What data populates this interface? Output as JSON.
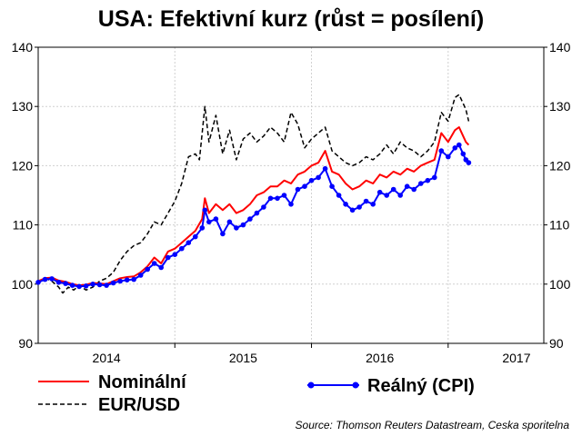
{
  "chart_data": {
    "type": "line",
    "title": "USA: Efektivní kurz (růst = posílení)",
    "source": "Source: Thomson Reuters Datastream, Ceska sporitelna",
    "ylim": [
      90,
      140
    ],
    "y_ticks": [
      "90",
      "100",
      "110",
      "120",
      "130",
      "140"
    ],
    "xlim": [
      2013.5,
      2017.2
    ],
    "x_ticks": [
      {
        "label": "2014",
        "x": 2014
      },
      {
        "label": "2015",
        "x": 2015
      },
      {
        "label": "2016",
        "x": 2016
      },
      {
        "label": "2017",
        "x": 2017
      }
    ],
    "grid": true,
    "legend_position": "bottom",
    "series": [
      {
        "name": "Nominální",
        "color": "#ff0000",
        "style": "solid",
        "points": [
          [
            2013.5,
            100.5
          ],
          [
            2013.55,
            101.0
          ],
          [
            2013.6,
            101.1
          ],
          [
            2013.65,
            100.6
          ],
          [
            2013.7,
            100.4
          ],
          [
            2013.75,
            100.0
          ],
          [
            2013.8,
            99.8
          ],
          [
            2013.85,
            99.9
          ],
          [
            2013.9,
            100.2
          ],
          [
            2013.95,
            100.1
          ],
          [
            2014.0,
            100.0
          ],
          [
            2014.05,
            100.5
          ],
          [
            2014.1,
            101.0
          ],
          [
            2014.15,
            101.2
          ],
          [
            2014.2,
            101.3
          ],
          [
            2014.25,
            102.0
          ],
          [
            2014.3,
            103.0
          ],
          [
            2014.35,
            104.5
          ],
          [
            2014.4,
            103.5
          ],
          [
            2014.45,
            105.5
          ],
          [
            2014.5,
            106.0
          ],
          [
            2014.55,
            107.0
          ],
          [
            2014.6,
            108.0
          ],
          [
            2014.65,
            109.0
          ],
          [
            2014.7,
            111.0
          ],
          [
            2014.72,
            114.5
          ],
          [
            2014.75,
            112.0
          ],
          [
            2014.8,
            113.5
          ],
          [
            2014.85,
            112.5
          ],
          [
            2014.9,
            113.5
          ],
          [
            2014.95,
            112.0
          ],
          [
            2015.0,
            112.5
          ],
          [
            2015.05,
            113.5
          ],
          [
            2015.1,
            115.0
          ],
          [
            2015.15,
            115.5
          ],
          [
            2015.2,
            116.5
          ],
          [
            2015.25,
            116.5
          ],
          [
            2015.3,
            117.5
          ],
          [
            2015.35,
            117.0
          ],
          [
            2015.4,
            118.5
          ],
          [
            2015.45,
            119.0
          ],
          [
            2015.5,
            120.0
          ],
          [
            2015.55,
            120.5
          ],
          [
            2015.6,
            122.5
          ],
          [
            2015.65,
            119.0
          ],
          [
            2015.7,
            118.5
          ],
          [
            2015.75,
            117.0
          ],
          [
            2015.8,
            116.0
          ],
          [
            2015.85,
            116.5
          ],
          [
            2015.9,
            117.5
          ],
          [
            2015.95,
            117.0
          ],
          [
            2016.0,
            118.5
          ],
          [
            2016.05,
            118.0
          ],
          [
            2016.1,
            119.0
          ],
          [
            2016.15,
            118.5
          ],
          [
            2016.2,
            119.5
          ],
          [
            2016.25,
            119.0
          ],
          [
            2016.3,
            120.0
          ],
          [
            2016.35,
            120.5
          ],
          [
            2016.4,
            121.0
          ],
          [
            2016.45,
            125.5
          ],
          [
            2016.5,
            124.0
          ],
          [
            2016.55,
            126.0
          ],
          [
            2016.58,
            126.5
          ],
          [
            2016.61,
            125.0
          ],
          [
            2016.63,
            124.0
          ],
          [
            2016.65,
            123.5
          ]
        ]
      },
      {
        "name": "EUR/USD",
        "color": "#000000",
        "style": "dashed",
        "points": [
          [
            2013.5,
            100.5
          ],
          [
            2013.55,
            101.0
          ],
          [
            2013.6,
            100.5
          ],
          [
            2013.65,
            99.5
          ],
          [
            2013.68,
            98.5
          ],
          [
            2013.72,
            99.5
          ],
          [
            2013.76,
            99.0
          ],
          [
            2013.8,
            99.8
          ],
          [
            2013.85,
            99.0
          ],
          [
            2013.9,
            99.5
          ],
          [
            2013.95,
            100.5
          ],
          [
            2014.0,
            101.0
          ],
          [
            2014.05,
            102.0
          ],
          [
            2014.1,
            104.0
          ],
          [
            2014.15,
            105.5
          ],
          [
            2014.2,
            106.5
          ],
          [
            2014.25,
            107.0
          ],
          [
            2014.3,
            108.5
          ],
          [
            2014.35,
            110.5
          ],
          [
            2014.4,
            110.0
          ],
          [
            2014.45,
            112.0
          ],
          [
            2014.5,
            114.0
          ],
          [
            2014.55,
            117.0
          ],
          [
            2014.6,
            121.5
          ],
          [
            2014.65,
            122.0
          ],
          [
            2014.68,
            121.0
          ],
          [
            2014.72,
            130.0
          ],
          [
            2014.75,
            124.0
          ],
          [
            2014.8,
            128.5
          ],
          [
            2014.85,
            122.0
          ],
          [
            2014.9,
            126.0
          ],
          [
            2014.95,
            121.0
          ],
          [
            2015.0,
            124.5
          ],
          [
            2015.05,
            125.5
          ],
          [
            2015.1,
            124.0
          ],
          [
            2015.15,
            125.0
          ],
          [
            2015.2,
            126.5
          ],
          [
            2015.25,
            125.5
          ],
          [
            2015.3,
            124.0
          ],
          [
            2015.35,
            129.0
          ],
          [
            2015.4,
            127.0
          ],
          [
            2015.45,
            123.0
          ],
          [
            2015.5,
            124.5
          ],
          [
            2015.55,
            125.5
          ],
          [
            2015.6,
            126.5
          ],
          [
            2015.65,
            122.5
          ],
          [
            2015.7,
            121.5
          ],
          [
            2015.75,
            120.5
          ],
          [
            2015.8,
            120.0
          ],
          [
            2015.85,
            120.5
          ],
          [
            2015.9,
            121.5
          ],
          [
            2015.95,
            121.0
          ],
          [
            2016.0,
            122.0
          ],
          [
            2016.05,
            123.5
          ],
          [
            2016.1,
            122.0
          ],
          [
            2016.15,
            124.0
          ],
          [
            2016.2,
            123.0
          ],
          [
            2016.25,
            122.5
          ],
          [
            2016.3,
            121.5
          ],
          [
            2016.35,
            122.5
          ],
          [
            2016.4,
            124.0
          ],
          [
            2016.45,
            129.0
          ],
          [
            2016.5,
            127.5
          ],
          [
            2016.55,
            131.5
          ],
          [
            2016.58,
            132.0
          ],
          [
            2016.61,
            130.5
          ],
          [
            2016.63,
            129.5
          ],
          [
            2016.65,
            127.5
          ]
        ]
      },
      {
        "name": "Reálný (CPI)",
        "color": "#0000ff",
        "style": "solid-markers",
        "points": [
          [
            2013.5,
            100.3
          ],
          [
            2013.55,
            100.8
          ],
          [
            2013.6,
            100.9
          ],
          [
            2013.65,
            100.3
          ],
          [
            2013.7,
            100.1
          ],
          [
            2013.75,
            99.8
          ],
          [
            2013.8,
            99.6
          ],
          [
            2013.85,
            99.7
          ],
          [
            2013.9,
            100.0
          ],
          [
            2013.95,
            99.9
          ],
          [
            2014.0,
            99.8
          ],
          [
            2014.05,
            100.2
          ],
          [
            2014.1,
            100.5
          ],
          [
            2014.15,
            100.7
          ],
          [
            2014.2,
            100.8
          ],
          [
            2014.25,
            101.5
          ],
          [
            2014.3,
            102.5
          ],
          [
            2014.35,
            103.5
          ],
          [
            2014.4,
            102.8
          ],
          [
            2014.45,
            104.5
          ],
          [
            2014.5,
            105.0
          ],
          [
            2014.55,
            106.0
          ],
          [
            2014.6,
            107.0
          ],
          [
            2014.65,
            108.0
          ],
          [
            2014.7,
            109.5
          ],
          [
            2014.72,
            112.5
          ],
          [
            2014.75,
            110.5
          ],
          [
            2014.8,
            111.0
          ],
          [
            2014.85,
            108.5
          ],
          [
            2014.9,
            110.5
          ],
          [
            2014.95,
            109.5
          ],
          [
            2015.0,
            110.0
          ],
          [
            2015.05,
            111.0
          ],
          [
            2015.1,
            112.0
          ],
          [
            2015.15,
            113.0
          ],
          [
            2015.2,
            114.5
          ],
          [
            2015.25,
            114.5
          ],
          [
            2015.3,
            115.0
          ],
          [
            2015.35,
            113.5
          ],
          [
            2015.4,
            116.0
          ],
          [
            2015.45,
            116.5
          ],
          [
            2015.5,
            117.5
          ],
          [
            2015.55,
            118.0
          ],
          [
            2015.6,
            119.5
          ],
          [
            2015.65,
            116.5
          ],
          [
            2015.7,
            115.0
          ],
          [
            2015.75,
            113.5
          ],
          [
            2015.8,
            112.5
          ],
          [
            2015.85,
            113.0
          ],
          [
            2015.9,
            114.0
          ],
          [
            2015.95,
            113.5
          ],
          [
            2016.0,
            115.5
          ],
          [
            2016.05,
            115.0
          ],
          [
            2016.1,
            116.0
          ],
          [
            2016.15,
            115.0
          ],
          [
            2016.2,
            116.5
          ],
          [
            2016.25,
            116.0
          ],
          [
            2016.3,
            117.0
          ],
          [
            2016.35,
            117.5
          ],
          [
            2016.4,
            118.0
          ],
          [
            2016.45,
            122.5
          ],
          [
            2016.5,
            121.5
          ],
          [
            2016.55,
            123.0
          ],
          [
            2016.58,
            123.5
          ],
          [
            2016.61,
            122.0
          ],
          [
            2016.63,
            121.0
          ],
          [
            2016.65,
            120.5
          ]
        ]
      }
    ]
  }
}
